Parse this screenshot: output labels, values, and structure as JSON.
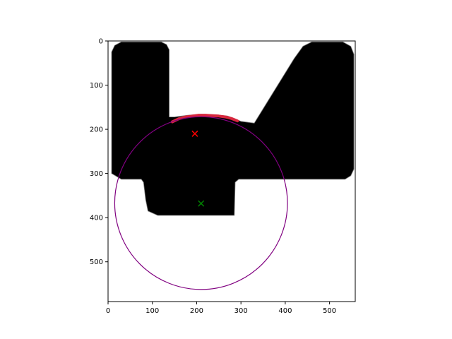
{
  "chart_data": {
    "type": "image-overlay",
    "title": "",
    "xlabel": "",
    "ylabel": "",
    "xlim": [
      0,
      558
    ],
    "ylim": [
      590,
      0
    ],
    "x_ticks": [
      0,
      100,
      200,
      300,
      400,
      500
    ],
    "y_ticks": [
      0,
      100,
      200,
      300,
      400,
      500
    ],
    "x_tick_labels": [
      "0",
      "100",
      "200",
      "300",
      "400",
      "500"
    ],
    "y_tick_labels": [
      "0",
      "100",
      "200",
      "300",
      "400",
      "500"
    ],
    "grid": false,
    "mask": {
      "description_color": "#000000",
      "polygon": [
        [
          8,
          25
        ],
        [
          15,
          10
        ],
        [
          30,
          2
        ],
        [
          120,
          2
        ],
        [
          132,
          8
        ],
        [
          138,
          20
        ],
        [
          138,
          172
        ],
        [
          150,
          172
        ],
        [
          180,
          168
        ],
        [
          210,
          166
        ],
        [
          240,
          167
        ],
        [
          270,
          170
        ],
        [
          300,
          182
        ],
        [
          330,
          186
        ],
        [
          420,
          40
        ],
        [
          440,
          12
        ],
        [
          460,
          2
        ],
        [
          530,
          2
        ],
        [
          548,
          12
        ],
        [
          555,
          30
        ],
        [
          555,
          290
        ],
        [
          548,
          305
        ],
        [
          535,
          313
        ],
        [
          295,
          313
        ],
        [
          287,
          320
        ],
        [
          285,
          395
        ],
        [
          112,
          395
        ],
        [
          90,
          385
        ],
        [
          85,
          360
        ],
        [
          80,
          320
        ],
        [
          75,
          313
        ],
        [
          30,
          313
        ],
        [
          8,
          300
        ]
      ],
      "outline_color": "#7f7f7f"
    },
    "red_arc": {
      "color": "#d7263d",
      "points": [
        [
          145,
          183
        ],
        [
          160,
          176
        ],
        [
          175,
          172
        ],
        [
          190,
          170
        ],
        [
          205,
          168
        ],
        [
          220,
          168
        ],
        [
          235,
          169
        ],
        [
          250,
          170
        ],
        [
          265,
          172
        ],
        [
          280,
          176
        ],
        [
          292,
          181
        ]
      ]
    },
    "circle": {
      "center": [
        210,
        367
      ],
      "radius": 195,
      "color": "#800080"
    },
    "markers": [
      {
        "name": "red-x",
        "x": 196,
        "y": 210,
        "color": "#ff0000",
        "symbol": "x"
      },
      {
        "name": "green-x",
        "x": 210,
        "y": 368,
        "color": "#008000",
        "symbol": "x"
      }
    ]
  }
}
